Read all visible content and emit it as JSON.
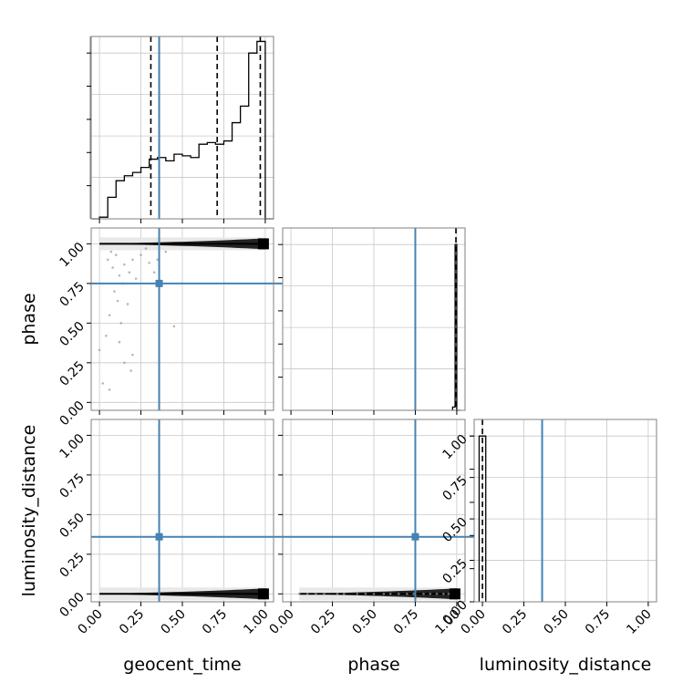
{
  "chart_data": {
    "type": "corner",
    "parameters": [
      "geocent_time",
      "phase",
      "luminosity_distance"
    ],
    "axis_labels": [
      "geocent_time",
      "phase",
      "luminosity_distance"
    ],
    "truth": {
      "geocent_time": 0.36,
      "phase": 0.75,
      "luminosity_distance": 0.36
    },
    "colors": {
      "truth": "#4682b4",
      "hist": "#000000",
      "grid": "#c8c8c8",
      "quantile": "#000000",
      "scatter": "#9a9a9a"
    },
    "grid": true,
    "ticks": [
      0.0,
      0.25,
      0.5,
      0.75,
      1.0
    ],
    "tick_labels": [
      "0.00",
      "0.25",
      "0.50",
      "0.75",
      "1.00"
    ],
    "histograms": [
      {
        "parameter": "geocent_time",
        "xlim": [
          -0.05,
          1.05
        ],
        "ylim": [
          0,
          1.1
        ],
        "bin_edges": [
          -0.05,
          0.0,
          0.05,
          0.1,
          0.15,
          0.2,
          0.25,
          0.3,
          0.35,
          0.4,
          0.45,
          0.5,
          0.55,
          0.6,
          0.65,
          0.7,
          0.75,
          0.8,
          0.85,
          0.9,
          0.95,
          1.0,
          1.05
        ],
        "counts": [
          0.0,
          0.01,
          0.13,
          0.23,
          0.26,
          0.28,
          0.31,
          0.36,
          0.37,
          0.35,
          0.39,
          0.38,
          0.37,
          0.45,
          0.46,
          0.45,
          0.47,
          0.58,
          0.68,
          1.0,
          1.07,
          0.0
        ],
        "quantiles": [
          0.31,
          0.71,
          0.97
        ]
      },
      {
        "parameter": "phase",
        "xlim": [
          -0.05,
          1.05
        ],
        "ylim": [
          0,
          1.1
        ],
        "bin_edges": [
          0.975,
          0.99,
          1.0,
          1.02
        ],
        "counts": [
          0.02,
          1.0,
          0.0
        ],
        "quantiles": [
          0.995
        ]
      },
      {
        "parameter": "luminosity_distance",
        "xlim": [
          -0.05,
          1.05
        ],
        "ylim": [
          0,
          1.1
        ],
        "bin_edges": [
          -0.02,
          0.0,
          0.02
        ],
        "counts": [
          1.0,
          1.0
        ],
        "quantiles": [
          0.0
        ]
      }
    ],
    "scatter_panels": [
      {
        "x": "geocent_time",
        "y": "phase",
        "xlim": [
          -0.05,
          1.05
        ],
        "ylim": [
          -0.05,
          1.1
        ],
        "cloud": {
          "x_range": [
            0.0,
            1.0
          ],
          "y": 1.0
        },
        "points": [
          [
            0.05,
            0.9
          ],
          [
            0.08,
            0.85
          ],
          [
            0.12,
            0.8
          ],
          [
            0.1,
            0.93
          ],
          [
            0.15,
            0.87
          ],
          [
            0.2,
            0.9
          ],
          [
            0.07,
            0.95
          ],
          [
            0.25,
            0.93
          ],
          [
            0.3,
            0.88
          ],
          [
            0.18,
            0.82
          ],
          [
            0.22,
            0.78
          ],
          [
            0.14,
            0.75
          ],
          [
            0.09,
            0.7
          ],
          [
            0.11,
            0.64
          ],
          [
            0.17,
            0.62
          ],
          [
            0.06,
            0.55
          ],
          [
            0.13,
            0.5
          ],
          [
            0.04,
            0.42
          ],
          [
            0.12,
            0.38
          ],
          [
            0.0,
            0.33
          ],
          [
            0.2,
            0.3
          ],
          [
            0.15,
            0.25
          ],
          [
            0.19,
            0.2
          ],
          [
            0.02,
            0.12
          ],
          [
            0.06,
            0.08
          ],
          [
            0.45,
            0.48
          ],
          [
            0.35,
            0.9
          ],
          [
            0.4,
            0.95
          ],
          [
            0.28,
            0.97
          ],
          [
            0.33,
            0.82
          ]
        ]
      },
      {
        "x": "geocent_time",
        "y": "luminosity_distance",
        "xlim": [
          -0.05,
          1.05
        ],
        "ylim": [
          -0.05,
          1.1
        ],
        "cloud": {
          "x_range": [
            0.0,
            1.0
          ],
          "y": 0.0
        },
        "points": []
      },
      {
        "x": "phase",
        "y": "luminosity_distance",
        "xlim": [
          -0.05,
          1.05
        ],
        "ylim": [
          -0.05,
          1.1
        ],
        "cloud": {
          "x_range": [
            0.05,
            1.0
          ],
          "y": 0.0
        },
        "points": [
          [
            0.05,
            0.0
          ],
          [
            0.1,
            0.0
          ],
          [
            0.15,
            0.0
          ],
          [
            0.2,
            0.0
          ],
          [
            0.28,
            0.0
          ],
          [
            0.32,
            0.0
          ],
          [
            0.4,
            0.0
          ],
          [
            0.45,
            0.0
          ],
          [
            0.5,
            0.0
          ],
          [
            0.56,
            0.0
          ],
          [
            0.6,
            0.0
          ],
          [
            0.65,
            0.0
          ],
          [
            0.7,
            0.0
          ],
          [
            0.74,
            0.0
          ],
          [
            0.8,
            0.0
          ],
          [
            0.84,
            0.0
          ],
          [
            0.88,
            0.0
          ],
          [
            0.92,
            0.0
          ],
          [
            0.95,
            0.0
          ]
        ]
      }
    ]
  }
}
